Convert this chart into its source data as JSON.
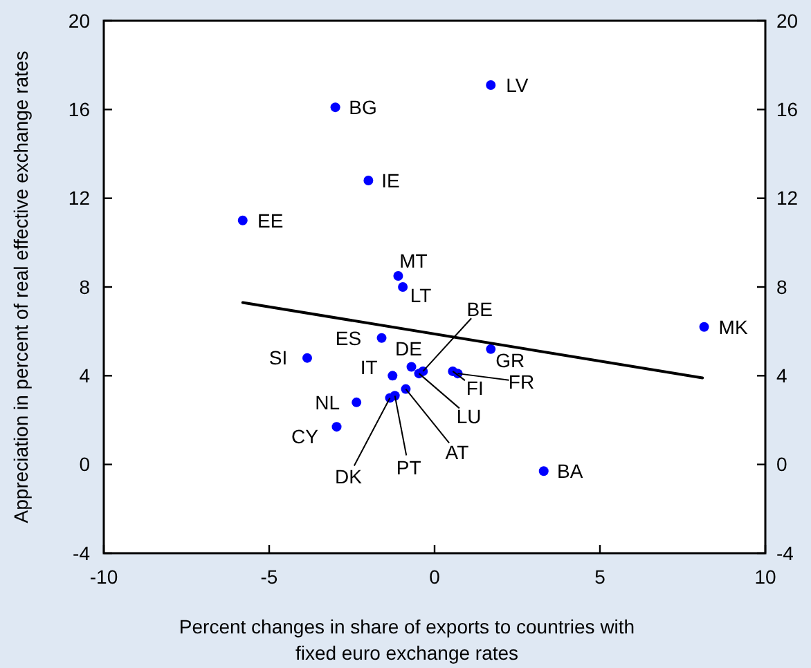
{
  "chart_data": {
    "type": "scatter",
    "xlabel": "Percent changes in share of exports to countries with\nfixed euro exchange rates",
    "ylabel": "Appreciation in percent of real effective exchange rates",
    "xlim": [
      -10,
      10
    ],
    "xticks": [
      -10,
      -5,
      0,
      5,
      10
    ],
    "ylim": [
      -4,
      20
    ],
    "yticks": [
      -4,
      0,
      4,
      8,
      12,
      16,
      20
    ],
    "y2lim": [
      -4,
      20
    ],
    "y2ticks": [
      -4,
      0,
      4,
      8,
      12,
      16,
      20
    ],
    "series": [
      {
        "marker": "circle",
        "color": "#0000ff",
        "x": [
          1.7,
          -3.0,
          -2.0,
          -5.8,
          -1.1,
          -0.96,
          -1.6,
          -3.85,
          -0.7,
          -0.35,
          -1.27,
          1.7,
          0.7,
          0.55,
          -0.47,
          -0.87,
          -1.2,
          -1.35,
          -2.36,
          -2.96,
          3.3,
          8.15
        ],
        "values": [
          17.1,
          16.1,
          12.8,
          11.0,
          8.5,
          8.0,
          5.7,
          4.8,
          4.4,
          4.2,
          4.0,
          5.2,
          4.1,
          4.2,
          4.1,
          3.4,
          3.1,
          3.0,
          2.8,
          1.7,
          -0.3,
          6.2
        ]
      },
      {
        "type": "line",
        "marker": "none",
        "color": "#000000",
        "x": [
          -5.8,
          8.1
        ],
        "values": [
          7.3,
          3.9
        ]
      }
    ],
    "annotations": [
      {
        "text": "LV",
        "x": 1.7,
        "y": 17.1
      },
      {
        "text": "BG",
        "x": -3.0,
        "y": 16.1
      },
      {
        "text": "IE",
        "x": -2.0,
        "y": 12.8
      },
      {
        "text": "EE",
        "x": -5.8,
        "y": 11.0
      },
      {
        "text": "MT",
        "x": -1.1,
        "y": 8.5
      },
      {
        "text": "LT",
        "x": -0.96,
        "y": 8.0
      },
      {
        "text": "ES",
        "x": -1.6,
        "y": 5.7
      },
      {
        "text": "SI",
        "x": -3.85,
        "y": 4.8
      },
      {
        "text": "DE",
        "x": -0.7,
        "y": 4.4
      },
      {
        "text": "BE",
        "x": -0.35,
        "y": 4.2
      },
      {
        "text": "IT",
        "x": -1.27,
        "y": 4.0
      },
      {
        "text": "GR",
        "x": 1.7,
        "y": 5.2
      },
      {
        "text": "FR",
        "x": 0.7,
        "y": 4.1
      },
      {
        "text": "FI",
        "x": 0.55,
        "y": 4.2
      },
      {
        "text": "LU",
        "x": -0.47,
        "y": 4.1
      },
      {
        "text": "AT",
        "x": -0.87,
        "y": 3.4
      },
      {
        "text": "PT",
        "x": -1.2,
        "y": 3.1
      },
      {
        "text": "DK",
        "x": -1.35,
        "y": 3.0
      },
      {
        "text": "NL",
        "x": -2.36,
        "y": 2.8
      },
      {
        "text": "CY",
        "x": -2.96,
        "y": 1.7
      },
      {
        "text": "BA",
        "x": 3.3,
        "y": -0.3
      },
      {
        "text": "MK",
        "x": 8.15,
        "y": 6.2
      }
    ]
  }
}
